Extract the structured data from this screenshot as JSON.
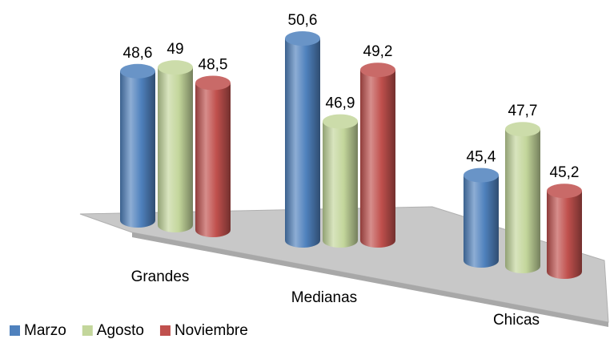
{
  "chart_data": {
    "type": "bar3d",
    "categories": [
      "Grandes",
      "Medianas",
      "Chicas"
    ],
    "series": [
      {
        "name": "Marzo",
        "color": "#4f81bd",
        "values": [
          48.6,
          50.6,
          45.4
        ],
        "value_labels": [
          "48,6",
          "50,6",
          "45,4"
        ]
      },
      {
        "name": "Agosto",
        "color": "#c3d69b",
        "values": [
          49,
          46.9,
          47.7
        ],
        "value_labels": [
          "49",
          "46,9",
          "47,7"
        ]
      },
      {
        "name": "Noviembre",
        "color": "#c0504d",
        "values": [
          48.5,
          49.2,
          45.2
        ],
        "value_labels": [
          "48,5",
          "49,2",
          "45,2"
        ]
      }
    ],
    "legend": "bottom-left"
  }
}
